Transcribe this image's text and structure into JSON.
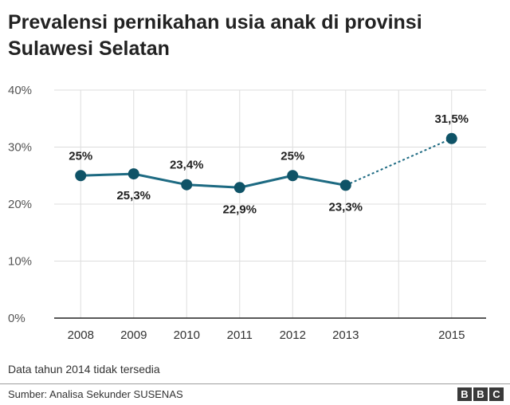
{
  "title": "Prevalensi pernikahan usia anak di provinsi Sulawesi Selatan",
  "note": "Data tahun 2014 tidak tersedia",
  "source": "Sumber: Analisa Sekunder SUSENAS",
  "logo": [
    "B",
    "B",
    "C"
  ],
  "colors": {
    "line": "#1d6a82",
    "marker": "#0f5367",
    "grid": "#dddddd",
    "axis": "#222222"
  },
  "chart_data": {
    "type": "line",
    "title": "Prevalensi pernikahan usia anak di provinsi Sulawesi Selatan",
    "xlabel": "",
    "ylabel": "",
    "x": [
      2008,
      2009,
      2010,
      2011,
      2012,
      2013,
      2015
    ],
    "x_ticks": [
      2008,
      2009,
      2010,
      2011,
      2012,
      2013,
      2014,
      2015
    ],
    "x_tick_labels": [
      "2008",
      "2009",
      "2010",
      "2011",
      "2012",
      "2013",
      "",
      "2015"
    ],
    "y": [
      25,
      25.3,
      23.4,
      22.9,
      25,
      23.3,
      31.5
    ],
    "data_labels": [
      "25%",
      "25,3%",
      "23,4%",
      "22,9%",
      "25%",
      "23,3%",
      "31,5%"
    ],
    "label_positions": [
      "above",
      "below",
      "above",
      "below",
      "above",
      "below",
      "above"
    ],
    "solid_segment_years": [
      2008,
      2013
    ],
    "dashed_segment_years": [
      2013,
      2015
    ],
    "ylim": [
      0,
      40
    ],
    "y_ticks": [
      0,
      10,
      20,
      30,
      40
    ],
    "y_tick_labels": [
      "0%",
      "10%",
      "20%",
      "30%",
      "40%"
    ],
    "grid": true,
    "legend": "none"
  }
}
